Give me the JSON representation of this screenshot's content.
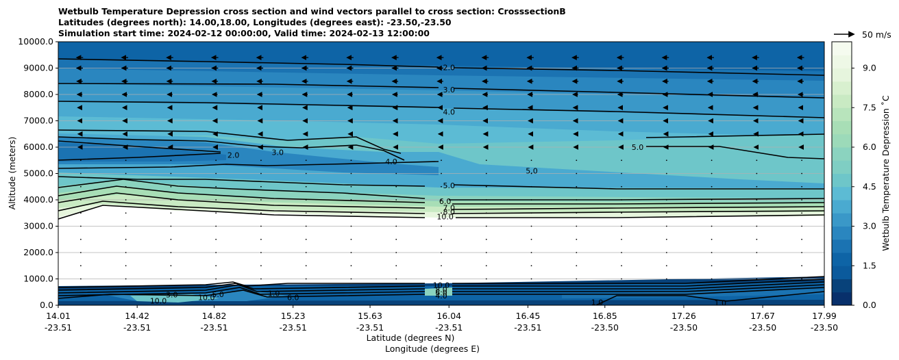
{
  "chart_data": {
    "type": "heatmap",
    "title_lines": [
      "Wetbulb Temperature Depression cross section and wind vectors parallel to cross section: CrosssectionB",
      "Latitudes (degrees north): 14.00,18.00, Longitudes (degrees east): -23.50,-23.50",
      "Simulation start time: 2024-02-12 00:00:00, Valid time: 2024-02-13 12:00:00"
    ],
    "xlabel_lat": "Latitude (degrees N)",
    "xlabel_lon": "Longitude (degrees E)",
    "ylabel": "Altitude (meters)",
    "colorbar_label": "Wetbulb Temperature Depression ˚C",
    "quiver_key_label": "50 m/s",
    "xlim": [
      14.01,
      17.99
    ],
    "ylim": [
      0,
      10000
    ],
    "x_ticks": [
      {
        "lat": "14.01",
        "lon": "-23.51"
      },
      {
        "lat": "14.42",
        "lon": "-23.51"
      },
      {
        "lat": "14.82",
        "lon": "-23.51"
      },
      {
        "lat": "15.23",
        "lon": "-23.51"
      },
      {
        "lat": "15.63",
        "lon": "-23.51"
      },
      {
        "lat": "16.04",
        "lon": "-23.51"
      },
      {
        "lat": "16.45",
        "lon": "-23.51"
      },
      {
        "lat": "16.85",
        "lon": "-23.50"
      },
      {
        "lat": "17.26",
        "lon": "-23.50"
      },
      {
        "lat": "17.67",
        "lon": "-23.50"
      },
      {
        "lat": "17.99",
        "lon": "-23.50"
      }
    ],
    "y_ticks": [
      "0.0",
      "1000.0",
      "2000.0",
      "3000.0",
      "4000.0",
      "5000.0",
      "6000.0",
      "7000.0",
      "8000.0",
      "9000.0",
      "10000.0"
    ],
    "colorbar_ticks": [
      "0.0",
      "1.5",
      "3.0",
      "4.5",
      "6.0",
      "7.5",
      "9.0"
    ],
    "colorbar_range": [
      0,
      10
    ],
    "grid": true,
    "contour_labels": [
      {
        "text": "2.0",
        "lat": 16.04,
        "alt": 9020
      },
      {
        "text": "3.0",
        "lat": 16.04,
        "alt": 8180
      },
      {
        "text": "4.0",
        "lat": 16.04,
        "alt": 7340
      },
      {
        "text": "2.0",
        "lat": 14.92,
        "alt": 5700
      },
      {
        "text": "3.0",
        "lat": 15.15,
        "alt": 5800
      },
      {
        "text": "4.0",
        "lat": 15.74,
        "alt": 5450
      },
      {
        "text": "5.0",
        "lat": 17.02,
        "alt": 6000
      },
      {
        "text": "5.0",
        "lat": 16.47,
        "alt": 5100
      },
      {
        "text": "5.0",
        "lat": 16.04,
        "alt": 4550
      },
      {
        "text": "6.0",
        "lat": 16.02,
        "alt": 3950
      },
      {
        "text": "7.0",
        "lat": 16.04,
        "alt": 3700
      },
      {
        "text": "8.0",
        "lat": 16.04,
        "alt": 3550
      },
      {
        "text": "10.0",
        "lat": 16.02,
        "alt": 3360
      },
      {
        "text": "10.0",
        "lat": 16.0,
        "alt": 770
      },
      {
        "text": "8.0",
        "lat": 16.0,
        "alt": 600
      },
      {
        "text": "6.0",
        "lat": 16.0,
        "alt": 480
      },
      {
        "text": "4.0",
        "lat": 16.0,
        "alt": 360
      },
      {
        "text": "10.0",
        "lat": 14.53,
        "alt": 170
      },
      {
        "text": "10.0",
        "lat": 14.78,
        "alt": 300
      },
      {
        "text": "5.0",
        "lat": 14.84,
        "alt": 420
      },
      {
        "text": "6.0",
        "lat": 15.23,
        "alt": 300
      },
      {
        "text": "3.0",
        "lat": 14.6,
        "alt": 400
      },
      {
        "text": "1.0",
        "lat": 15.13,
        "alt": 450
      },
      {
        "text": "1.0",
        "lat": 16.81,
        "alt": 120
      },
      {
        "text": "1.0",
        "lat": 17.45,
        "alt": 90
      }
    ],
    "wind_rows_m": [
      9400,
      9000,
      8500,
      8000,
      7500,
      7000,
      6500,
      6000,
      5500,
      5000,
      4500,
      4000,
      3500,
      3000,
      2500,
      2000,
      1500,
      1000
    ],
    "wind_u_ms": [
      -13,
      -12,
      -11,
      -9,
      -7,
      -6,
      -5,
      -4,
      -3,
      -3,
      -3,
      -2,
      -1.5,
      -1,
      -0.5,
      -0.5,
      -0.5,
      -0.5
    ]
  }
}
